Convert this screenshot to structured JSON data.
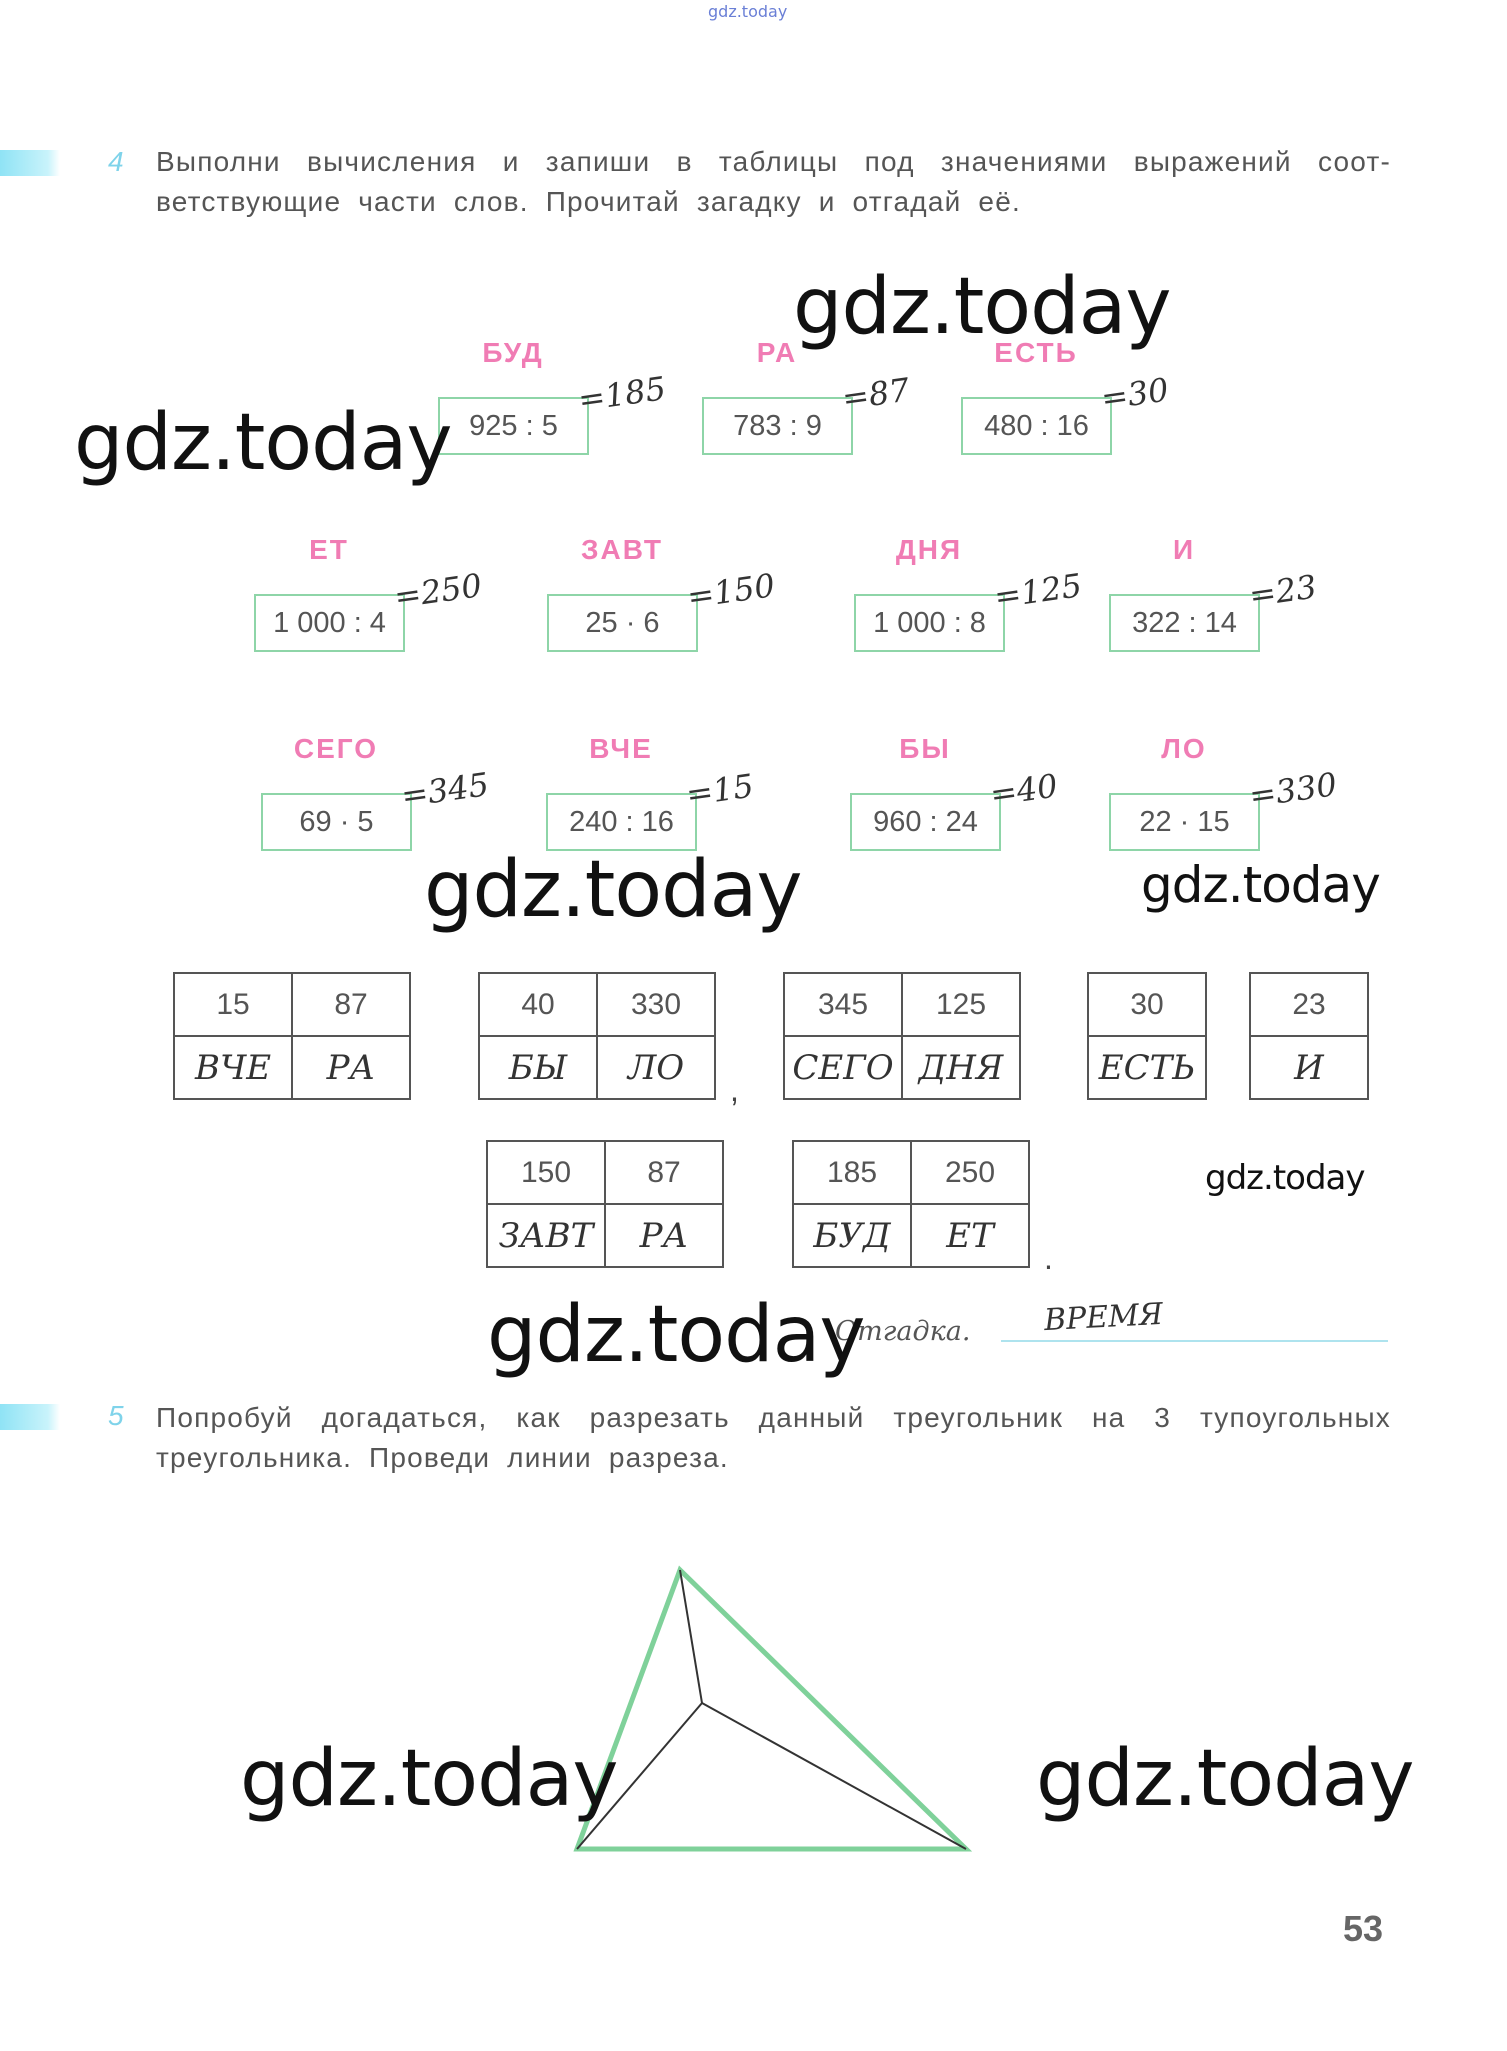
{
  "header": {
    "site": "gdz.today"
  },
  "task4": {
    "number": "4",
    "text": "Выполни вычисления и запиши в таблицы под значениями выражений соот- ветствующие части слов. Прочитай загадку и отгадай её.",
    "expressions": [
      {
        "label": "БУД",
        "expr": "925 : 5",
        "answer": "=185"
      },
      {
        "label": "РА",
        "expr": "783 : 9",
        "answer": "=87"
      },
      {
        "label": "ЕСТЬ",
        "expr": "480 : 16",
        "answer": "=30"
      },
      {
        "label": "ЕТ",
        "expr": "1 000 : 4",
        "answer": "=250"
      },
      {
        "label": "ЗАВТ",
        "expr": "25 · 6",
        "answer": "=150"
      },
      {
        "label": "ДНЯ",
        "expr": "1 000 : 8",
        "answer": "=125"
      },
      {
        "label": "И",
        "expr": "322 : 14",
        "answer": "=23"
      },
      {
        "label": "СЕГО",
        "expr": "69 · 5",
        "answer": "=345"
      },
      {
        "label": "ВЧЕ",
        "expr": "240 : 16",
        "answer": "=15"
      },
      {
        "label": "БЫ",
        "expr": "960 : 24",
        "answer": "=40"
      },
      {
        "label": "ЛО",
        "expr": "22 · 15",
        "answer": "=330"
      }
    ],
    "tables": [
      {
        "numbers": [
          "15",
          "87"
        ],
        "words": [
          "ВЧЕ",
          "РА"
        ]
      },
      {
        "numbers": [
          "40",
          "330"
        ],
        "words": [
          "БЫ",
          "ЛО"
        ]
      },
      {
        "numbers": [
          "345",
          "125"
        ],
        "words": [
          "СЕГО",
          "ДНЯ"
        ]
      },
      {
        "numbers": [
          "30"
        ],
        "words": [
          "ЕСТЬ"
        ]
      },
      {
        "numbers": [
          "23"
        ],
        "words": [
          "И"
        ]
      },
      {
        "numbers": [
          "150",
          "87"
        ],
        "words": [
          "ЗАВТ",
          "РА"
        ]
      },
      {
        "numbers": [
          "185",
          "250"
        ],
        "words": [
          "БУД",
          "ЕТ"
        ]
      }
    ],
    "comma": ",",
    "period": ".",
    "answer_label": "Отгадка.",
    "answer_value": "ВРЕМЯ"
  },
  "task5": {
    "number": "5",
    "text": "Попробуй догадаться, как разрезать данный треугольник на 3 тупоугольных треугольника. Проведи линии разреза."
  },
  "watermark": "gdz.today",
  "page_number": "53",
  "colors": {
    "label_pink": "#f07cb4",
    "box_green": "#8ed5a8",
    "triangle_green": "#7fd19a",
    "accent_cyan": "#8fe3f5"
  }
}
